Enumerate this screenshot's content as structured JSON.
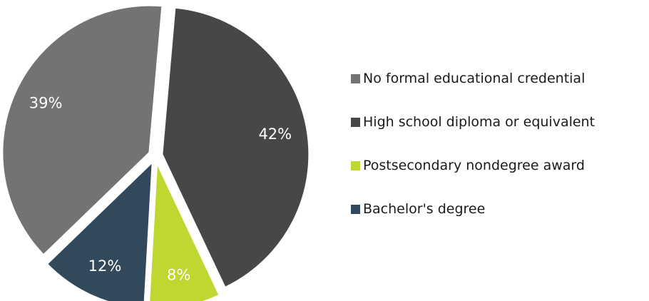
{
  "chart_data": {
    "type": "pie",
    "categories": [
      "No formal educational credential",
      "High school diploma or equivalent",
      "Postsecondary nondegree award",
      "Bachelor's degree"
    ],
    "values": [
      39,
      42,
      8,
      12
    ],
    "value_labels": [
      "39%",
      "42%",
      "8%",
      "12%"
    ],
    "colors": [
      "#737373",
      "#474749",
      "#bfd730",
      "#31495a"
    ],
    "legend_position": "right",
    "title": ""
  }
}
